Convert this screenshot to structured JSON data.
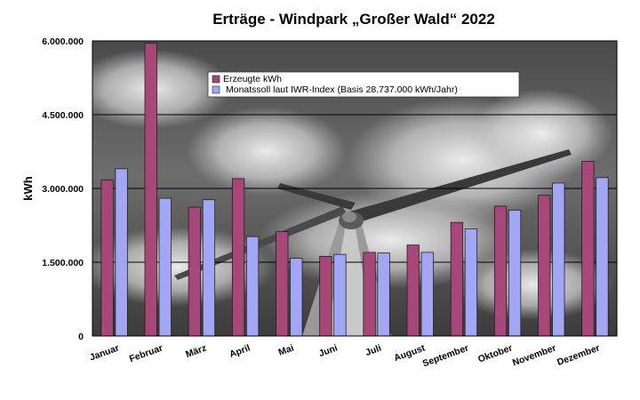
{
  "chart_data": {
    "type": "bar",
    "title": "Erträge - Windpark „Großer Wald“ 2022",
    "ylabel": "kWh",
    "xlabel": "",
    "ylim": [
      0,
      6000000
    ],
    "yticks": [
      0,
      1500000,
      3000000,
      4500000,
      6000000
    ],
    "ytick_labels": [
      "0",
      "1.500.000",
      "3.000.000",
      "4.500.000",
      "6.000.000"
    ],
    "categories": [
      "Januar",
      "Februar",
      "März",
      "April",
      "Mai",
      "Juni",
      "Juli",
      "August",
      "September",
      "Oktober",
      "November",
      "Dezember"
    ],
    "series": [
      {
        "name": "Erzeugte kWh",
        "color": "#a64778",
        "values": [
          3170000,
          5950000,
          2620000,
          3200000,
          2120000,
          1620000,
          1700000,
          1850000,
          2310000,
          2640000,
          2860000,
          3550000
        ]
      },
      {
        "name": "Monatssoll laut IWR-Index (Basis 28.737.000 kWh/Jahr)",
        "color": "#a3a6f2",
        "values": [
          3400000,
          2800000,
          2770000,
          2020000,
          1580000,
          1660000,
          1690000,
          1700000,
          2180000,
          2560000,
          3110000,
          3220000
        ]
      }
    ],
    "grid": true,
    "legend_position": "top-center",
    "background": "photo of a wind turbine against a cloudy sky (grayscale)"
  }
}
